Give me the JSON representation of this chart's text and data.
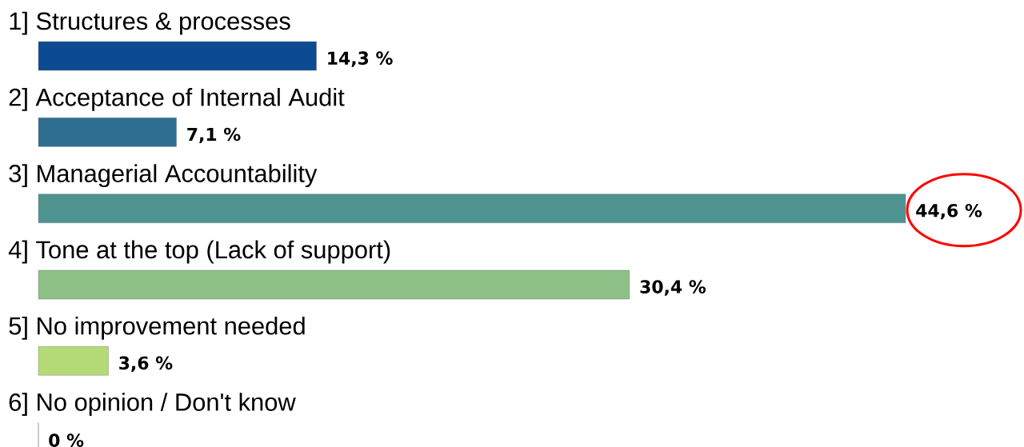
{
  "chart_data": {
    "type": "bar",
    "orientation": "horizontal",
    "categories": [
      "1] Structures & processes",
      "2] Acceptance of Internal Audit",
      "3] Managerial Accountability",
      "4] Tone at the top (Lack of support)",
      "5] No improvement needed",
      "6] No opinion / Don't know"
    ],
    "values": [
      14.3,
      7.1,
      44.6,
      30.4,
      3.6,
      0
    ],
    "value_labels": [
      "14,3 %",
      "7,1 %",
      "44,6 %",
      "30,4 %",
      "3,6 %",
      "0 %"
    ],
    "colors": [
      "#0d4a94",
      "#2e6e91",
      "#4f9390",
      "#8dbf86",
      "#b4db78",
      "#c8e68a"
    ]
  }
}
